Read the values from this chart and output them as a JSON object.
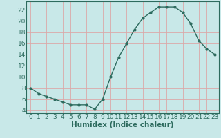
{
  "x": [
    0,
    1,
    2,
    3,
    4,
    5,
    6,
    7,
    8,
    9,
    10,
    11,
    12,
    13,
    14,
    15,
    16,
    17,
    18,
    19,
    20,
    21,
    22,
    23
  ],
  "y": [
    8,
    7,
    6.5,
    6,
    5.5,
    5,
    5,
    5,
    4.2,
    6,
    10,
    13.5,
    16,
    18.5,
    20.5,
    21.5,
    22.5,
    22.5,
    22.5,
    21.5,
    19.5,
    16.5,
    15,
    14
  ],
  "line_color": "#2d6b5e",
  "marker_color": "#2d6b5e",
  "bg_color": "#c8e8e8",
  "grid_color": "#dca8a8",
  "xlabel": "Humidex (Indice chaleur)",
  "xlim": [
    -0.5,
    23.5
  ],
  "ylim": [
    3.5,
    23.5
  ],
  "yticks": [
    4,
    6,
    8,
    10,
    12,
    14,
    16,
    18,
    20,
    22
  ],
  "xticks": [
    0,
    1,
    2,
    3,
    4,
    5,
    6,
    7,
    8,
    9,
    10,
    11,
    12,
    13,
    14,
    15,
    16,
    17,
    18,
    19,
    20,
    21,
    22,
    23
  ],
  "tick_fontsize": 6.5,
  "label_fontsize": 7.5
}
